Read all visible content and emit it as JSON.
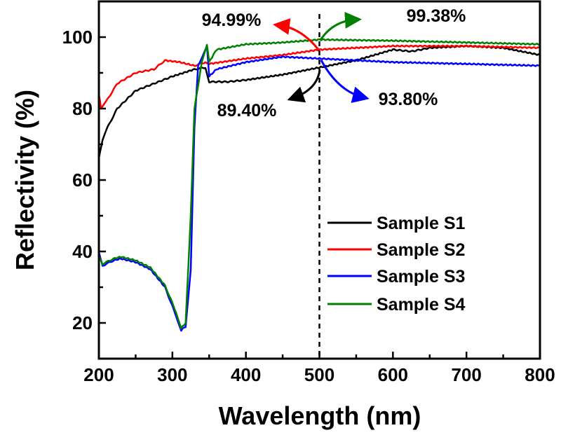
{
  "chart_data": {
    "type": "line",
    "title": "",
    "xlabel": "Wavelength (nm)",
    "ylabel": "Reflectivity (%)",
    "xlim": [
      200,
      800
    ],
    "ylim": [
      10,
      110
    ],
    "xticks": [
      200,
      300,
      400,
      500,
      600,
      700,
      800
    ],
    "yticks": [
      20,
      40,
      60,
      80,
      100
    ],
    "grid": false,
    "legend_position": "center-right",
    "reference_line": {
      "x": 500,
      "style": "dashed",
      "color": "#000000"
    },
    "series": [
      {
        "name": "Sample S1",
        "color": "#000000",
        "x": [
          200,
          205,
          210,
          225,
          250,
          275,
          300,
          330,
          345,
          350,
          375,
          400,
          450,
          500,
          550,
          600,
          625,
          650,
          700,
          750,
          800
        ],
        "y": [
          66,
          71,
          74,
          80,
          85,
          87,
          89,
          91,
          91.5,
          87.5,
          87.5,
          88,
          89.5,
          91.5,
          93.5,
          96.5,
          96,
          97,
          97.5,
          97,
          95
        ]
      },
      {
        "name": "Sample S2",
        "color": "#ff0000",
        "x": [
          200,
          203,
          210,
          225,
          250,
          275,
          290,
          310,
          330,
          345,
          350,
          400,
          450,
          500,
          550,
          600,
          700,
          800
        ],
        "y": [
          84,
          80,
          82,
          87,
          90,
          91,
          93.5,
          93,
          92,
          93,
          92.5,
          94,
          95,
          96.5,
          97,
          97.5,
          97.5,
          97
        ]
      },
      {
        "name": "Sample S3",
        "color": "#0000ff",
        "x": [
          200,
          205,
          220,
          230,
          250,
          270,
          290,
          305,
          312,
          318,
          325,
          330,
          335,
          340,
          347,
          350,
          360,
          400,
          450,
          500,
          550,
          600,
          700,
          800
        ],
        "y": [
          40,
          36,
          37.5,
          38,
          37,
          35,
          30,
          22,
          18,
          19,
          35,
          75,
          92,
          94,
          97.5,
          89,
          91,
          93,
          94.5,
          94,
          93.5,
          93,
          92.5,
          92
        ]
      },
      {
        "name": "Sample S4",
        "color": "#008000",
        "x": [
          200,
          205,
          220,
          230,
          250,
          270,
          290,
          305,
          312,
          318,
          325,
          330,
          340,
          347,
          350,
          360,
          400,
          450,
          500,
          600,
          700,
          800
        ],
        "y": [
          39,
          36.5,
          38,
          38.5,
          37.5,
          35.5,
          30.5,
          23,
          18.5,
          20,
          50,
          80,
          93,
          98,
          93,
          96.5,
          98,
          98.5,
          99.3,
          99,
          98.5,
          98
        ]
      }
    ],
    "annotations": [
      {
        "text": "94.99%",
        "series": "Sample S2",
        "color": "#ff0000"
      },
      {
        "text": "99.38%",
        "series": "Sample S4",
        "color": "#008000"
      },
      {
        "text": "89.40%",
        "series": "Sample S1",
        "color": "#000000"
      },
      {
        "text": "93.80%",
        "series": "Sample S3",
        "color": "#0000ff"
      }
    ]
  }
}
